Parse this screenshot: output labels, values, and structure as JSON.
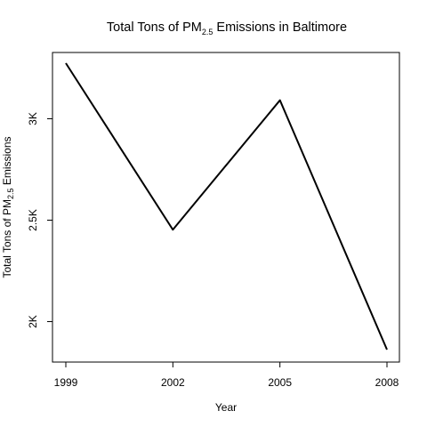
{
  "chart_data": {
    "type": "line",
    "title": {
      "prefix": "Total Tons of PM",
      "subscript": "2.5",
      "suffix": " Emissions in Baltimore"
    },
    "xlabel": "Year",
    "ylabel": {
      "prefix": "Total Tons of PM",
      "subscript": "2.5",
      "suffix": " Emissions"
    },
    "x": [
      1999,
      2002,
      2005,
      2008
    ],
    "x_tick_labels": [
      "1999",
      "2002",
      "2005",
      "2008"
    ],
    "y": [
      3274,
      2453,
      3091,
      1862
    ],
    "y_ticks": [
      2000,
      2500,
      3000
    ],
    "y_tick_labels": [
      "2K",
      "2.5K",
      "3K"
    ],
    "xlim": [
      1999,
      2008
    ],
    "ylim": [
      1862,
      3274
    ],
    "grid": false,
    "legend": "none",
    "line_color": "#000000"
  }
}
